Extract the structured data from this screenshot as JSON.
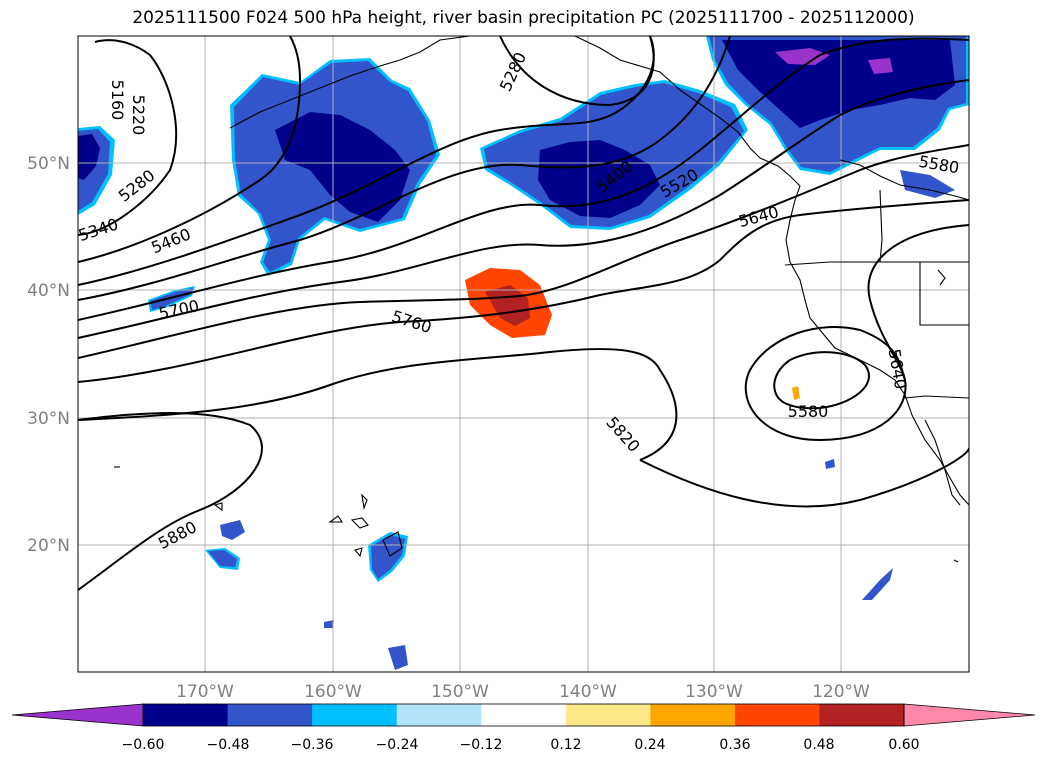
{
  "title": "2025111500 F024 500 hPa height, river basin precipitation PC (2025111700 - 2025112000)",
  "map": {
    "lon_labels": [
      "170°W",
      "160°W",
      "150°W",
      "140°W",
      "130°W",
      "120°W"
    ],
    "lat_labels": [
      "50°N",
      "40°N",
      "30°N",
      "20°N"
    ],
    "contour_labels": [
      "5160",
      "5220",
      "5280",
      "5280",
      "5340",
      "5400",
      "5460",
      "5520",
      "5580",
      "5580",
      "5640",
      "5640",
      "5700",
      "5760",
      "5820",
      "5880"
    ]
  },
  "colorbar": {
    "colors": [
      "#9933cc",
      "#00008b",
      "#3355cc",
      "#00bfff",
      "#b3e2fb",
      "#ffffff",
      "#fde98a",
      "#ffa500",
      "#ff4500",
      "#b22222",
      "#ff88aa"
    ],
    "tick_labels": [
      "−0.60",
      "−0.48",
      "−0.36",
      "−0.24",
      "−0.12",
      "0.12",
      "0.24",
      "0.36",
      "0.48",
      "0.60"
    ]
  }
}
